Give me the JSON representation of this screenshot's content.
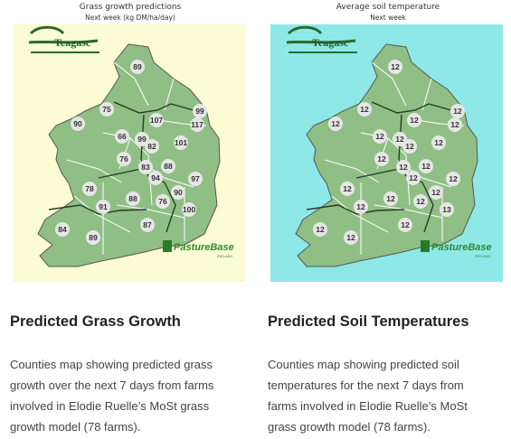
{
  "grass_map": {
    "title": "Grass growth predictions",
    "subtitle": "Next week (kg DM/ha/day)",
    "heading": "Predicted Grass Growth",
    "description": "Counties map showing predicted grass growth over the next 7 days from farms involved in Elodie Ruelle’s MoSt grass growth model (78 farms).",
    "background": "#fcfcd4",
    "values": [
      "89",
      "75",
      "99",
      "107",
      "117",
      "90",
      "66",
      "99",
      "82",
      "101",
      "76",
      "83",
      "88",
      "94",
      "97",
      "90",
      "78",
      "88",
      "76",
      "91",
      "100",
      "87",
      "84",
      "89"
    ]
  },
  "soil_map": {
    "title": "Average soil temperature",
    "subtitle": "Next week",
    "heading": "Predicted Soil Temperatures",
    "description": "Counties map showing predicted soil temperatures for the next 7 days from farms involved in Elodie Ruelle’s MoSt grass growth model (78 farms).",
    "background": "#8ee8e8",
    "values": [
      "12",
      "12",
      "12",
      "12",
      "12",
      "12",
      "12",
      "12",
      "12",
      "12",
      "12",
      "12",
      "12",
      "12",
      "12",
      "12",
      "12",
      "12",
      "12",
      "12",
      "13",
      "12",
      "12",
      "12"
    ]
  },
  "logos": {
    "teagasc": "Teagasc",
    "pasturebase": "PastureBase",
    "pasturebase_sub": "IRELAND"
  },
  "colors": {
    "land": "#90bf85",
    "county_line": "#ffffff",
    "region_line": "#2a3a2a",
    "label_bg": "#e6e6e6"
  }
}
